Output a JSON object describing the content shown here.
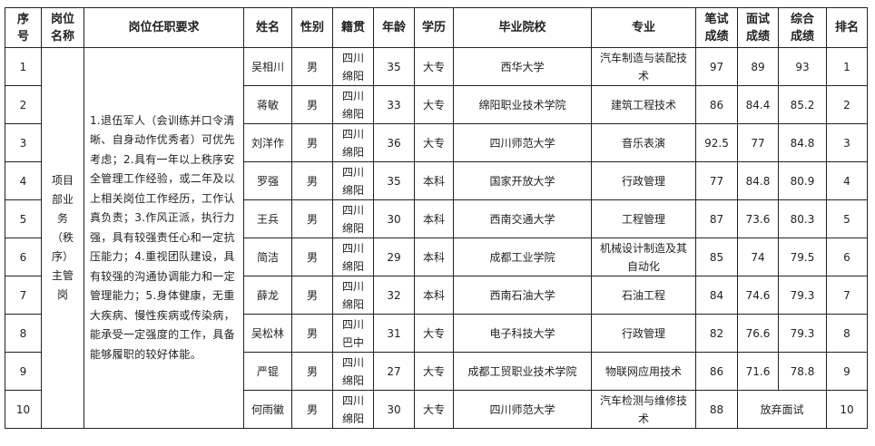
{
  "headers": [
    "序号",
    "岗位名称",
    "岗位任职要求",
    "姓名",
    "性别",
    "籍贯",
    "年龄",
    "学历",
    "毕业院校",
    "专业",
    "笔试成绩",
    "面试成绩",
    "综合成绩",
    "排名"
  ],
  "position": "项目部业务（秩序）主管岗",
  "requirements": "1.退伍军人（会训练并口令清晰、自身动作优秀者）可优先考虑；2.具有一年以上秩序安全管理工作经验，或二年及以上相关岗位工作经历，工作认真负责；3.作风正派，执行力强，具有较强责任心和一定抗压能力；4.重视团队建设，具有较强的沟通协调能力和一定管理能力；5.身体健康，无重大疾病、慢性疾病或传染病，能承受一定强度的工作，具备能够履职的较好体能。",
  "rows": [
    {
      "no": "1",
      "name": "吴相川",
      "gender": "男",
      "origin": "四川绵阳",
      "age": "35",
      "edu": "大专",
      "school": "西华大学",
      "major": "汽车制造与装配技术",
      "written": "97",
      "interview": "89",
      "total": "93",
      "rank": "1"
    },
    {
      "no": "2",
      "name": "蒋敏",
      "gender": "男",
      "origin": "四川绵阳",
      "age": "33",
      "edu": "大专",
      "school": "绵阳职业技术学院",
      "major": "建筑工程技术",
      "written": "86",
      "interview": "84.4",
      "total": "85.2",
      "rank": "2"
    },
    {
      "no": "3",
      "name": "刘洋作",
      "gender": "男",
      "origin": "四川绵阳",
      "age": "36",
      "edu": "大专",
      "school": "四川师范大学",
      "major": "音乐表演",
      "written": "92.5",
      "interview": "77",
      "total": "84.8",
      "rank": "3"
    },
    {
      "no": "4",
      "name": "罗强",
      "gender": "男",
      "origin": "四川绵阳",
      "age": "35",
      "edu": "本科",
      "school": "国家开放大学",
      "major": "行政管理",
      "written": "77",
      "interview": "84.8",
      "total": "80.9",
      "rank": "4"
    },
    {
      "no": "5",
      "name": "王兵",
      "gender": "男",
      "origin": "四川绵阳",
      "age": "30",
      "edu": "本科",
      "school": "西南交通大学",
      "major": "工程管理",
      "written": "87",
      "interview": "73.6",
      "total": "80.3",
      "rank": "5"
    },
    {
      "no": "6",
      "name": "简洁",
      "gender": "男",
      "origin": "四川绵阳",
      "age": "29",
      "edu": "本科",
      "school": "成都工业学院",
      "major": "机械设计制造及其自动化",
      "written": "85",
      "interview": "74",
      "total": "79.5",
      "rank": "6"
    },
    {
      "no": "7",
      "name": "薛龙",
      "gender": "男",
      "origin": "四川绵阳",
      "age": "32",
      "edu": "本科",
      "school": "西南石油大学",
      "major": "石油工程",
      "written": "84",
      "interview": "74.6",
      "total": "79.3",
      "rank": "7"
    },
    {
      "no": "8",
      "name": "吴松林",
      "gender": "男",
      "origin": "四川巴中",
      "age": "31",
      "edu": "大专",
      "school": "电子科技大学",
      "major": "行政管理",
      "written": "82",
      "interview": "76.6",
      "total": "79.3",
      "rank": "8"
    },
    {
      "no": "9",
      "name": "严锟",
      "gender": "男",
      "origin": "四川绵阳",
      "age": "27",
      "edu": "大专",
      "school": "成都工贸职业技术学院",
      "major": "物联网应用技术",
      "written": "86",
      "interview": "71.6",
      "total": "78.8",
      "rank": "9"
    },
    {
      "no": "10",
      "name": "何雨徽",
      "gender": "男",
      "origin": "四川绵阳",
      "age": "30",
      "edu": "大专",
      "school": "四川师范大学",
      "major": "汽车检测与维修技术",
      "written": "88",
      "interview_total": "放弃面试",
      "rank": "10"
    }
  ]
}
